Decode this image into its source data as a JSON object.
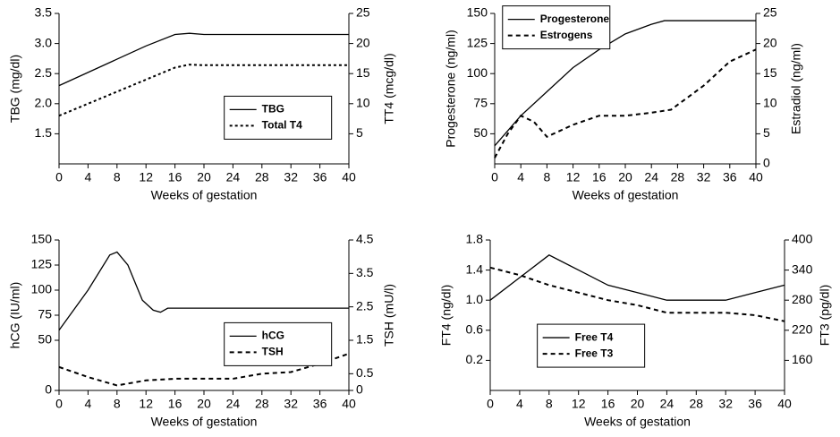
{
  "chart_data": [
    {
      "type": "line",
      "xlabel": "Weeks of gestation",
      "ylabel": "TBG (mg/dl)",
      "y2label": "TT4 (mcg/dl)",
      "xlim": [
        0,
        40
      ],
      "xticks": [
        0,
        4,
        8,
        12,
        16,
        20,
        24,
        28,
        32,
        36,
        40
      ],
      "ylim": [
        1.0,
        3.5
      ],
      "yticks": [
        {
          "value": 1.5,
          "label": "1.5"
        },
        {
          "value": 2.0,
          "label": "2.0"
        },
        {
          "value": 2.5,
          "label": "2.5"
        },
        {
          "value": 3.0,
          "label": "3.0"
        },
        {
          "value": 3.5,
          "label": "3.5"
        }
      ],
      "y2lim": [
        0,
        25
      ],
      "y2ticks": [
        5,
        10,
        15,
        20,
        25
      ],
      "legend": "right",
      "series": [
        {
          "name": "TBG",
          "color": "#000000",
          "style": "solid",
          "x": [
            0,
            4,
            8,
            12,
            16,
            18,
            20,
            24,
            28,
            32,
            36,
            40
          ],
          "values": [
            2.3,
            2.52,
            2.74,
            2.96,
            3.15,
            3.17,
            3.15,
            3.15,
            3.15,
            3.15,
            3.15,
            3.15
          ]
        },
        {
          "name": "Total T4",
          "color": "#000000",
          "style": "dotted",
          "axis": "y2",
          "x": [
            0,
            4,
            8,
            12,
            16,
            18,
            20,
            24,
            28,
            32,
            36,
            40
          ],
          "values": [
            8,
            10,
            12,
            14,
            16,
            16.5,
            16.4,
            16.4,
            16.4,
            16.4,
            16.4,
            16.4
          ]
        }
      ]
    },
    {
      "type": "line",
      "xlabel": "Weeks of gestation",
      "ylabel": "Progesterone (ng/ml)",
      "y2label": "Estradiol (ng/ml)",
      "xlim": [
        0,
        40
      ],
      "xticks": [
        0,
        4,
        8,
        12,
        16,
        20,
        24,
        28,
        32,
        36,
        40
      ],
      "ylim": [
        25,
        150
      ],
      "yticks": [
        50,
        75,
        100,
        125,
        150
      ],
      "y2lim": [
        0,
        25
      ],
      "y2ticks": [
        0,
        5,
        10,
        15,
        20,
        25
      ],
      "legend": "upper left",
      "series": [
        {
          "name": "Progesterone",
          "color": "#000000",
          "style": "solid",
          "x": [
            0,
            4,
            8,
            12,
            16,
            20,
            24,
            26,
            28,
            32,
            36,
            40
          ],
          "values": [
            40,
            65,
            85,
            105,
            120,
            133,
            141,
            144,
            144,
            144,
            144,
            144
          ]
        },
        {
          "name": "Estrogens",
          "color": "#000000",
          "style": "dashed",
          "axis": "y2",
          "x": [
            0,
            2,
            4,
            6,
            8,
            10,
            12,
            16,
            20,
            24,
            27,
            32,
            36,
            40
          ],
          "values": [
            1,
            5,
            8,
            7,
            4.5,
            5.5,
            6.5,
            8,
            8,
            8.5,
            9,
            13,
            17,
            19
          ]
        }
      ]
    },
    {
      "type": "line",
      "xlabel": "Weeks of gestation",
      "ylabel": "hCG (IU/ml)",
      "y2label": "TSH (mU/l)",
      "xlim": [
        0,
        40
      ],
      "xticks": [
        0,
        4,
        8,
        12,
        16,
        20,
        24,
        28,
        32,
        36,
        40
      ],
      "ylim": [
        0,
        150
      ],
      "yticks": [
        0,
        50,
        75,
        100,
        125,
        150
      ],
      "y2lim": [
        0,
        4.5
      ],
      "y2ticks": [
        0,
        0.5,
        1.5,
        2.5,
        3.5,
        4.5
      ],
      "legend": "right",
      "series": [
        {
          "name": "hCG",
          "color": "#000000",
          "style": "solid",
          "x": [
            0,
            4,
            7,
            8,
            9.5,
            11.5,
            13,
            14,
            15,
            16,
            20,
            24,
            28,
            32,
            36,
            40
          ],
          "values": [
            60,
            100,
            135,
            138,
            125,
            90,
            80,
            78,
            82,
            82,
            82,
            82,
            82,
            82,
            82,
            82
          ]
        },
        {
          "name": "TSH",
          "color": "#000000",
          "style": "dashed",
          "axis": "y2",
          "x": [
            0,
            4,
            8,
            12,
            16,
            20,
            24,
            28,
            32,
            36,
            40
          ],
          "values": [
            0.7,
            0.4,
            0.15,
            0.3,
            0.35,
            0.35,
            0.35,
            0.5,
            0.55,
            0.8,
            1.1
          ]
        }
      ]
    },
    {
      "type": "line",
      "xlabel": "Weeks of gestation",
      "ylabel": "FT4 (ng/dl)",
      "y2label": "FT3 (pg/dl)",
      "xlim": [
        0,
        40
      ],
      "xticks": [
        0,
        4,
        8,
        12,
        16,
        20,
        24,
        28,
        32,
        36,
        40
      ],
      "ylim": [
        -0.2,
        1.8
      ],
      "yticks": [
        0.2,
        0.6,
        {
          "value": 1.0,
          "label": "1.0"
        },
        1.4,
        1.8
      ],
      "y2lim": [
        100,
        400
      ],
      "y2ticks": [
        160,
        220,
        280,
        340,
        400
      ],
      "legend": "lower left",
      "series": [
        {
          "name": "Free T4",
          "color": "#000000",
          "style": "solid",
          "x": [
            0,
            4,
            8,
            12,
            16,
            20,
            24,
            28,
            32,
            36,
            40
          ],
          "values": [
            1.0,
            1.3,
            1.6,
            1.4,
            1.2,
            1.1,
            1.0,
            1.0,
            1.0,
            1.1,
            1.2
          ]
        },
        {
          "name": "Free T3",
          "color": "#000000",
          "style": "dashed",
          "axis": "y2",
          "x": [
            0,
            4,
            8,
            12,
            16,
            20,
            24,
            28,
            32,
            36,
            40
          ],
          "values": [
            345,
            330,
            310,
            295,
            280,
            270,
            255,
            255,
            255,
            250,
            238
          ]
        }
      ]
    }
  ]
}
